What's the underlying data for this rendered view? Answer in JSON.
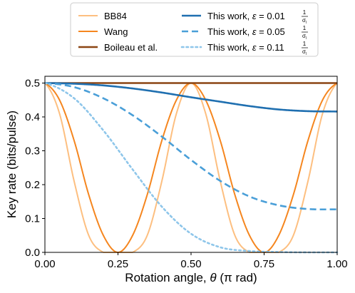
{
  "chart_data": {
    "type": "line",
    "xlabel_prefix": "Rotation angle, ",
    "xlabel_symbol": "θ",
    "xlabel_suffix": " (π rad)",
    "ylabel": "Key rate (bits/pulse)",
    "xlim": [
      0,
      1
    ],
    "ylim": [
      0,
      0.52
    ],
    "xticks": [
      "0.00",
      "0.25",
      "0.50",
      "0.75",
      "1.00"
    ],
    "yticks": [
      "0.0",
      "0.1",
      "0.2",
      "0.3",
      "0.4",
      "0.5"
    ],
    "grid": false,
    "legend_placement": "top, outside plot",
    "series": [
      {
        "name": "BB84",
        "color": "#fdbf80",
        "style": "solid",
        "x": [
          0,
          0.05,
          0.1,
          0.15,
          0.2,
          0.25,
          0.3,
          0.35,
          0.4,
          0.45,
          0.5,
          0.55,
          0.6,
          0.65,
          0.7,
          0.75,
          0.8,
          0.85,
          0.9,
          0.95,
          1.0
        ],
        "y": [
          0.5,
          0.41,
          0.21,
          0.05,
          0.0,
          0.0,
          0.0,
          0.05,
          0.21,
          0.41,
          0.5,
          0.41,
          0.21,
          0.05,
          0.0,
          0.0,
          0.0,
          0.05,
          0.21,
          0.41,
          0.5
        ]
      },
      {
        "name": "Wang",
        "color": "#f5861f",
        "style": "solid",
        "x": [
          0,
          0.05,
          0.1,
          0.15,
          0.2,
          0.25,
          0.3,
          0.35,
          0.4,
          0.45,
          0.5,
          0.55,
          0.6,
          0.65,
          0.7,
          0.75,
          0.8,
          0.85,
          0.9,
          0.95,
          1.0
        ],
        "y": [
          0.5,
          0.45,
          0.33,
          0.17,
          0.05,
          0.0,
          0.05,
          0.17,
          0.33,
          0.45,
          0.5,
          0.45,
          0.33,
          0.17,
          0.05,
          0.0,
          0.05,
          0.17,
          0.33,
          0.45,
          0.5
        ]
      },
      {
        "name": "Boileau et al.",
        "color": "#8b4513",
        "style": "solid",
        "x": [
          0,
          1.0
        ],
        "y": [
          0.5,
          0.5
        ]
      },
      {
        "name": "This work, ε = 0.01",
        "color": "#1f6fb0",
        "style": "solid",
        "x": [
          0,
          0.1,
          0.2,
          0.3,
          0.4,
          0.5,
          0.6,
          0.7,
          0.8,
          0.9,
          1.0
        ],
        "y": [
          0.5,
          0.498,
          0.493,
          0.484,
          0.472,
          0.458,
          0.445,
          0.432,
          0.422,
          0.417,
          0.416
        ]
      },
      {
        "name": "This work, ε = 0.05",
        "color": "#4a9fd8",
        "style": "dashed",
        "x": [
          0,
          0.1,
          0.2,
          0.3,
          0.4,
          0.5,
          0.6,
          0.7,
          0.8,
          0.9,
          1.0
        ],
        "y": [
          0.5,
          0.488,
          0.455,
          0.405,
          0.342,
          0.273,
          0.211,
          0.165,
          0.139,
          0.128,
          0.127
        ]
      },
      {
        "name": "This work, ε = 0.11",
        "color": "#8ec6ea",
        "style": "dotted",
        "x": [
          0,
          0.1,
          0.2,
          0.3,
          0.4,
          0.5,
          0.6,
          0.7,
          0.8,
          0.9,
          1.0
        ],
        "y": [
          0.5,
          0.455,
          0.36,
          0.245,
          0.135,
          0.055,
          0.015,
          0.004,
          0.001,
          0.0,
          0.0
        ]
      }
    ],
    "legend_fraction": {
      "num": "1",
      "den": "σ",
      "den_sub": "l"
    }
  }
}
